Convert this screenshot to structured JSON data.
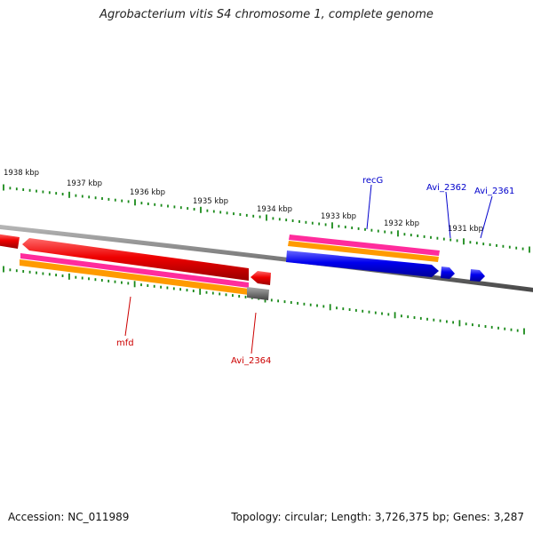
{
  "title": "Agrobacterium vitis S4 chromosome 1, complete genome",
  "footer": {
    "accession": "Accession: NC_011989",
    "topology": "Topology: circular; Length: 3,726,375 bp; Genes: 3,287"
  },
  "colors": {
    "backbone": "#7a7a7a",
    "tick": "#1a8a1a",
    "forward_gene": "#e00000",
    "reverse_gene": "#0000e0",
    "gene_rna": "#ff2c9c",
    "gene_cds": "#ff9a00",
    "pseudo": "#777777",
    "label_forward": "#cc0000",
    "label_reverse": "#0000cc"
  },
  "scale_labels": [
    "1931 kbp",
    "1932 kbp",
    "1933 kbp",
    "1934 kbp",
    "1935 kbp",
    "1936 kbp",
    "1937 kbp",
    "1938 kbp"
  ],
  "gene_labels": {
    "mfd": "mfd",
    "avi_2364": "Avi_2364",
    "recg": "recG",
    "avi_2362": "Avi_2362",
    "avi_2361": "Avi_2361"
  }
}
